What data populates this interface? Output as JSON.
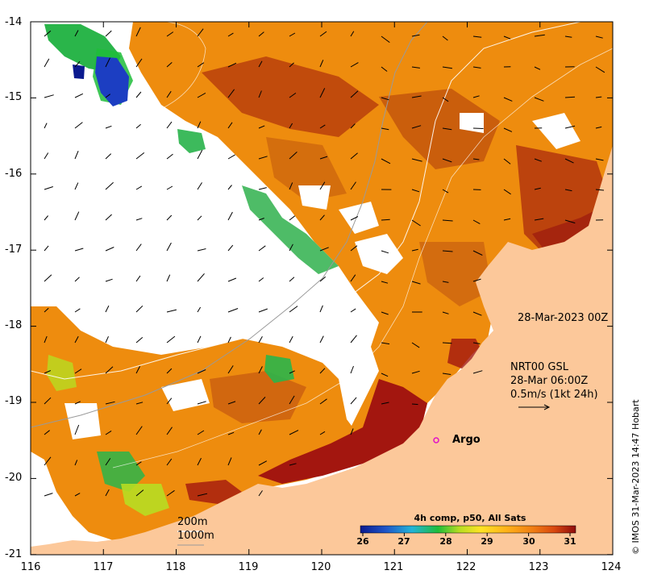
{
  "map": {
    "y_ticks": [
      "-14",
      "-15",
      "-16",
      "-17",
      "-18",
      "-19",
      "-20",
      "-21"
    ],
    "x_ticks": [
      "116",
      "117",
      "118",
      "119",
      "120",
      "121",
      "122",
      "123",
      "124"
    ],
    "date_label": "28-Mar-2023 00Z",
    "current_info": {
      "line1": "NRT00 GSL",
      "line2": "28-Mar 06:00Z",
      "line3": "0.5m/s (1kt 24h)"
    },
    "argo_label": "Argo",
    "isobaths": {
      "shallow": "200m",
      "deep": "1000m"
    },
    "credit": "© IMOS 31-Mar-2023 14:47 Hobart",
    "colorbar": {
      "title": "4h comp, p50, All Sats",
      "ticks": [
        "26",
        "27",
        "28",
        "29",
        "30",
        "31"
      ],
      "colors": [
        "#0b1a8f",
        "#1f57c9",
        "#23b4d8",
        "#1ebd3a",
        "#b7dd22",
        "#ffe324",
        "#ffb11a",
        "#f07e14",
        "#d9480f",
        "#8f0c0c"
      ]
    },
    "colors": {
      "land": "#fcc89a",
      "warm_main": "#ee8c0e",
      "warm_dark": "#c0520c",
      "hot": "#a3160f",
      "cool": "#2ab54a",
      "cold": "#1c3ec2",
      "argo": "#e010c8"
    }
  }
}
